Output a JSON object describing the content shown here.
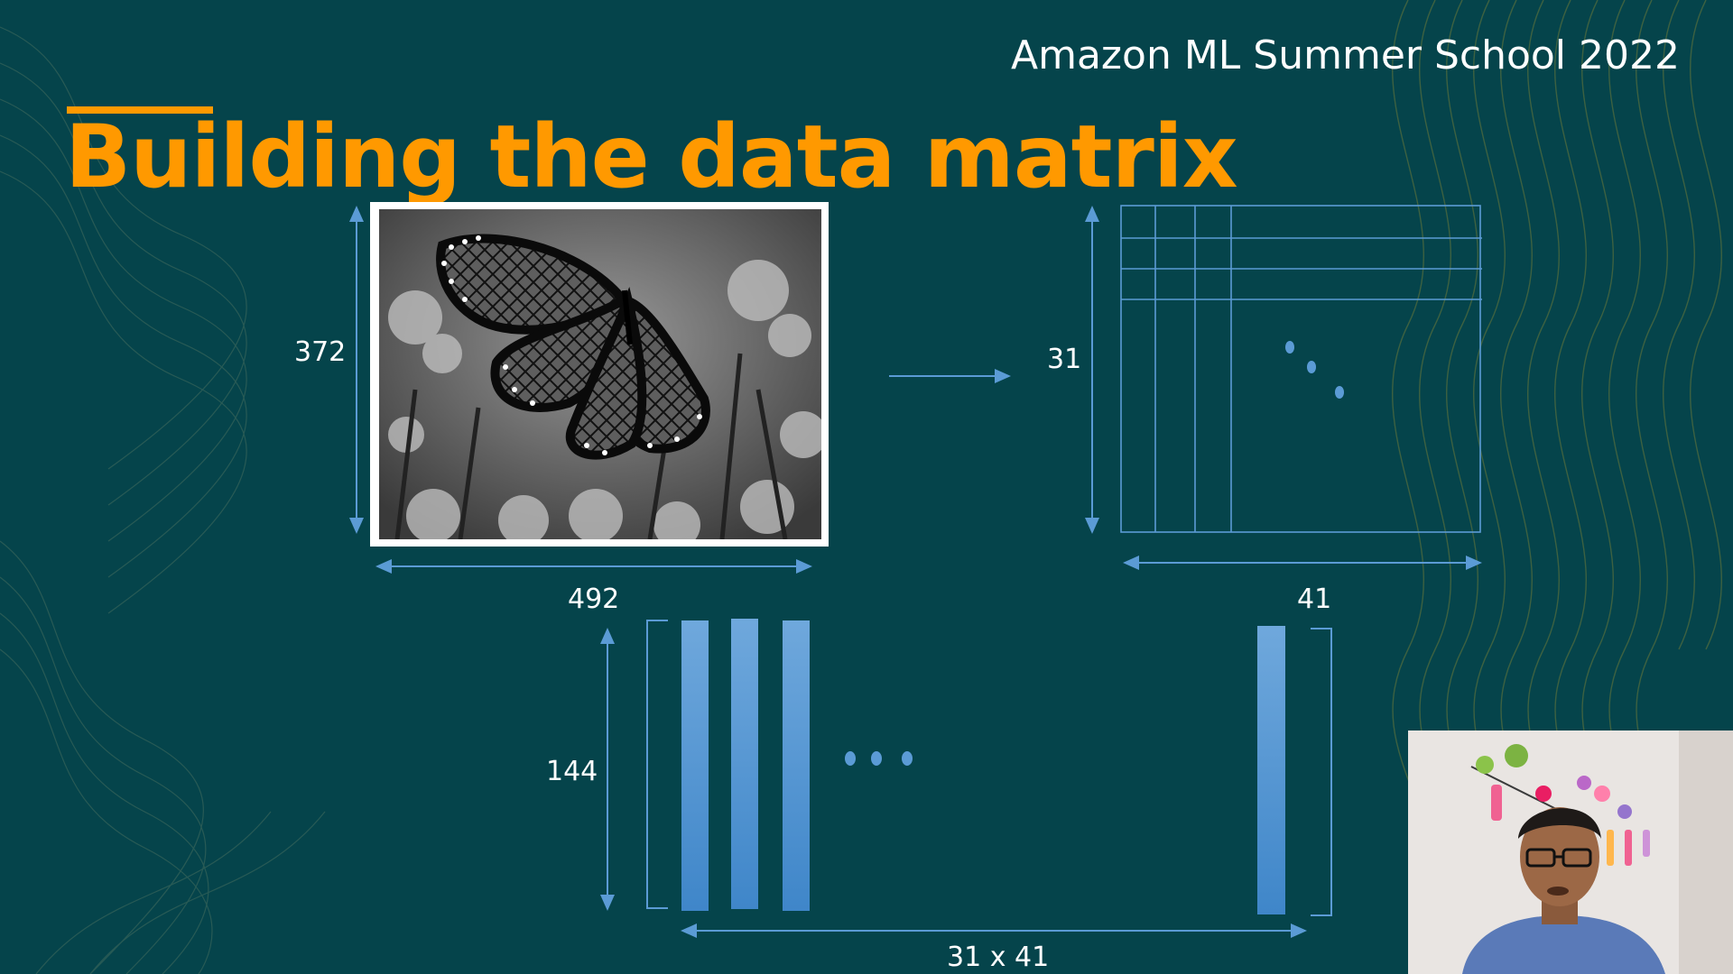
{
  "slide": {
    "org_title": "Amazon ML Summer School 2022",
    "title": "Building the data matrix"
  },
  "image_section": {
    "height_label": "372",
    "width_label": "492"
  },
  "grid_section": {
    "rows_label": "31",
    "cols_label": "41"
  },
  "matrix_section": {
    "height_label": "144",
    "width_label": "31 x 41",
    "visible_columns": 4
  },
  "colors": {
    "background": "#05444b",
    "accent": "#ff9900",
    "line_blue": "#5b9bd5",
    "text": "#ffffff"
  },
  "icons": {
    "arrow": "right-arrow-icon",
    "ellipsis": "ellipsis-dots"
  },
  "webcam": {
    "label": "presenter-video-feed"
  }
}
